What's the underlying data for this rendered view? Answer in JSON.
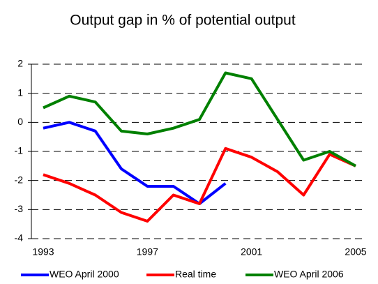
{
  "chart_data": {
    "type": "line",
    "title": "Output gap in % of potential output",
    "x": [
      1993,
      1994,
      1995,
      1996,
      1997,
      1998,
      1999,
      2000,
      2001,
      2002,
      2003,
      2004,
      2005
    ],
    "xlim": [
      1993,
      2005
    ],
    "xticks": [
      1993,
      1997,
      2001,
      2005
    ],
    "ylim": [
      -4,
      2
    ],
    "yticks": [
      -4,
      -3,
      -2,
      -1,
      0,
      1,
      2
    ],
    "grid": true,
    "legend": "bottom",
    "series": [
      {
        "name": "WEO April 2000",
        "color": "#0000ff",
        "values": [
          -0.2,
          0.0,
          -0.3,
          -1.6,
          -2.2,
          -2.2,
          -2.8,
          -2.1,
          null,
          null,
          null,
          null,
          null
        ]
      },
      {
        "name": "Real time",
        "color": "#ff0000",
        "values": [
          -1.8,
          -2.1,
          -2.5,
          -3.1,
          -3.4,
          -2.5,
          -2.8,
          -0.9,
          -1.2,
          -1.7,
          -2.5,
          -1.1,
          -1.5
        ]
      },
      {
        "name": "WEO April 2006",
        "color": "#008000",
        "values": [
          0.5,
          0.9,
          0.7,
          -0.3,
          -0.4,
          -0.2,
          0.1,
          1.7,
          1.5,
          0.1,
          -1.3,
          -1.0,
          -1.5
        ]
      }
    ]
  }
}
